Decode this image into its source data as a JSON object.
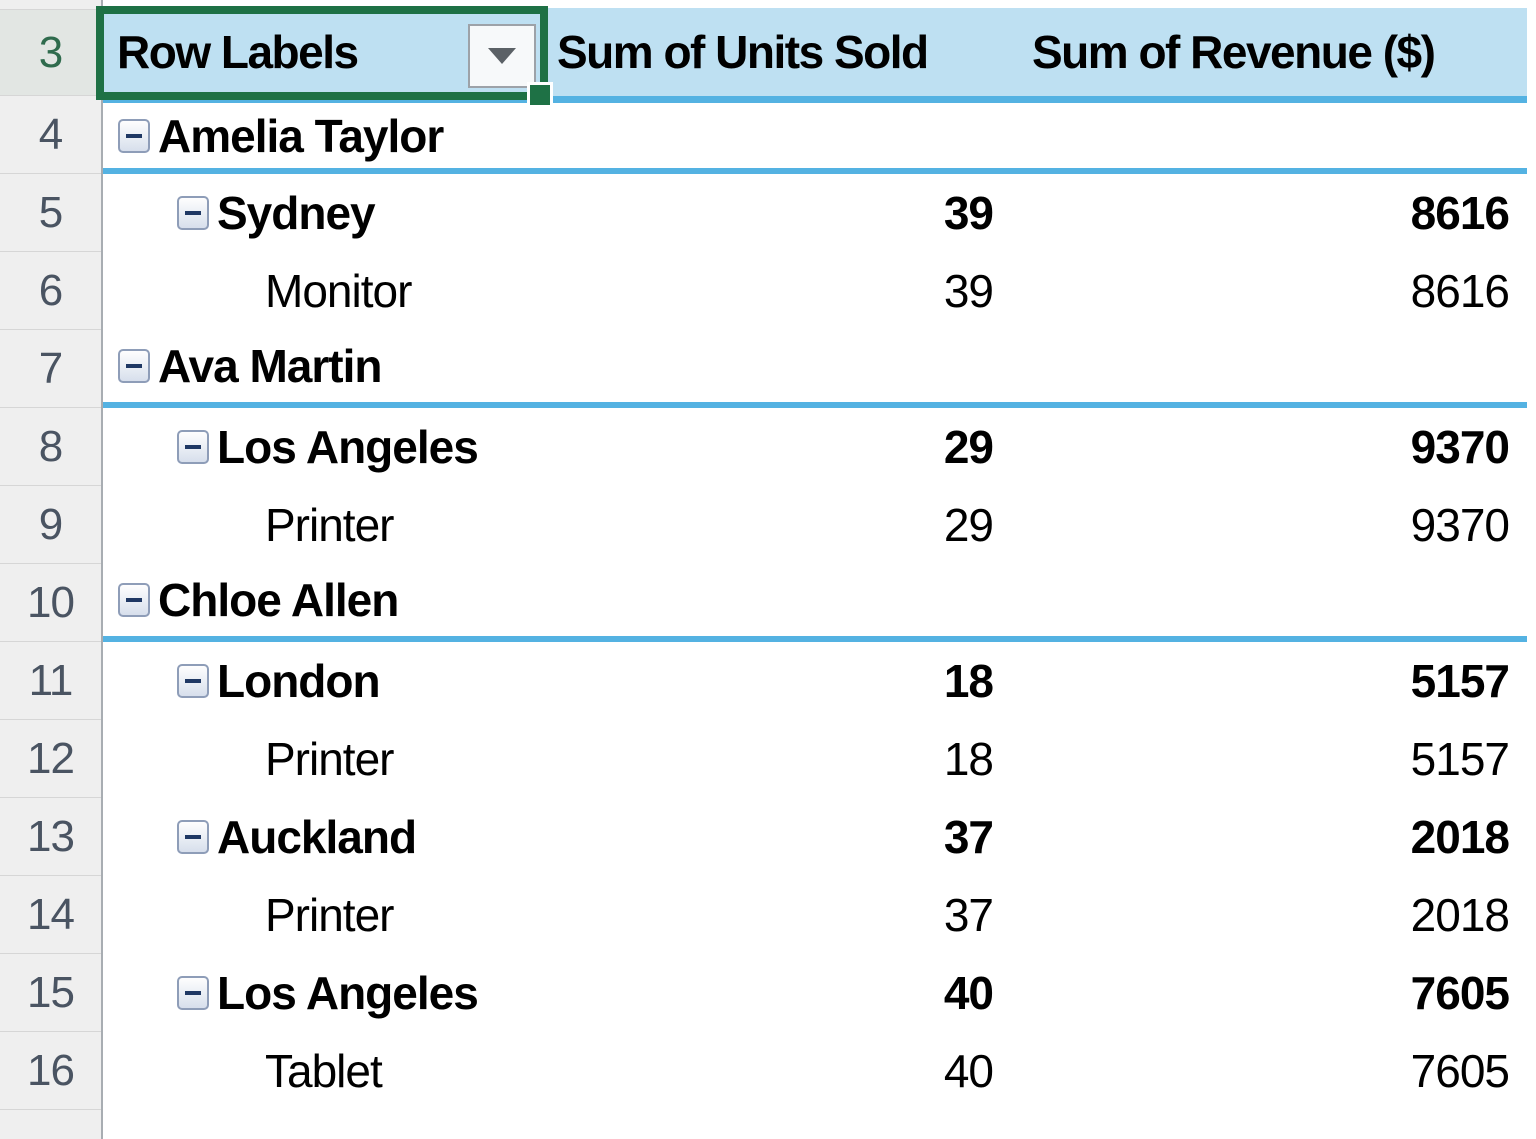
{
  "app": {
    "name": "Excel pivot table worksheet"
  },
  "gutter": {
    "rows": [
      "3",
      "4",
      "5",
      "6",
      "7",
      "8",
      "9",
      "10",
      "11",
      "12",
      "13",
      "14",
      "15",
      "16"
    ]
  },
  "table": {
    "columns": [
      {
        "label": "Row Labels",
        "has_filter": true
      },
      {
        "label": "Sum of Units Sold"
      },
      {
        "label": "Sum of Revenue ($)"
      }
    ],
    "rows": [
      {
        "excel_row": "4",
        "label": "Amelia Taylor",
        "level": 1,
        "bold": true,
        "collapsible": true,
        "units": "",
        "revenue": "",
        "rule_below": true
      },
      {
        "excel_row": "5",
        "label": "Sydney",
        "level": 2,
        "bold": true,
        "collapsible": true,
        "units": "39",
        "revenue": "8616",
        "rule_below": false
      },
      {
        "excel_row": "6",
        "label": "Monitor",
        "level": 3,
        "bold": false,
        "collapsible": false,
        "units": "39",
        "revenue": "8616",
        "rule_below": false
      },
      {
        "excel_row": "7",
        "label": "Ava Martin",
        "level": 1,
        "bold": true,
        "collapsible": true,
        "units": "",
        "revenue": "",
        "rule_below": true
      },
      {
        "excel_row": "8",
        "label": "Los Angeles",
        "level": 2,
        "bold": true,
        "collapsible": true,
        "units": "29",
        "revenue": "9370",
        "rule_below": false
      },
      {
        "excel_row": "9",
        "label": "Printer",
        "level": 3,
        "bold": false,
        "collapsible": false,
        "units": "29",
        "revenue": "9370",
        "rule_below": false
      },
      {
        "excel_row": "10",
        "label": "Chloe Allen",
        "level": 1,
        "bold": true,
        "collapsible": true,
        "units": "",
        "revenue": "",
        "rule_below": true
      },
      {
        "excel_row": "11",
        "label": "London",
        "level": 2,
        "bold": true,
        "collapsible": true,
        "units": "18",
        "revenue": "5157",
        "rule_below": false
      },
      {
        "excel_row": "12",
        "label": "Printer",
        "level": 3,
        "bold": false,
        "collapsible": false,
        "units": "18",
        "revenue": "5157",
        "rule_below": false
      },
      {
        "excel_row": "13",
        "label": "Auckland",
        "level": 2,
        "bold": true,
        "collapsible": true,
        "units": "37",
        "revenue": "2018",
        "rule_below": false
      },
      {
        "excel_row": "14",
        "label": "Printer",
        "level": 3,
        "bold": false,
        "collapsible": false,
        "units": "37",
        "revenue": "2018",
        "rule_below": false
      },
      {
        "excel_row": "15",
        "label": "Los Angeles",
        "level": 2,
        "bold": true,
        "collapsible": true,
        "units": "40",
        "revenue": "7605",
        "rule_below": false
      },
      {
        "excel_row": "16",
        "label": "Tablet",
        "level": 3,
        "bold": false,
        "collapsible": false,
        "units": "40",
        "revenue": "7605",
        "rule_below": false
      }
    ]
  },
  "selection": {
    "selected_header_cell": "Row Labels"
  },
  "icons": {
    "filter_dropdown": "triangle-down",
    "collapse": "minus"
  },
  "colors": {
    "header_fill": "#BEE0F2",
    "rule_blue": "#54B2E2",
    "selection_green": "#1E7145",
    "gutter_fill": "#EFEFEF",
    "collapse_minus": "#1F3864",
    "text": "#000000"
  }
}
